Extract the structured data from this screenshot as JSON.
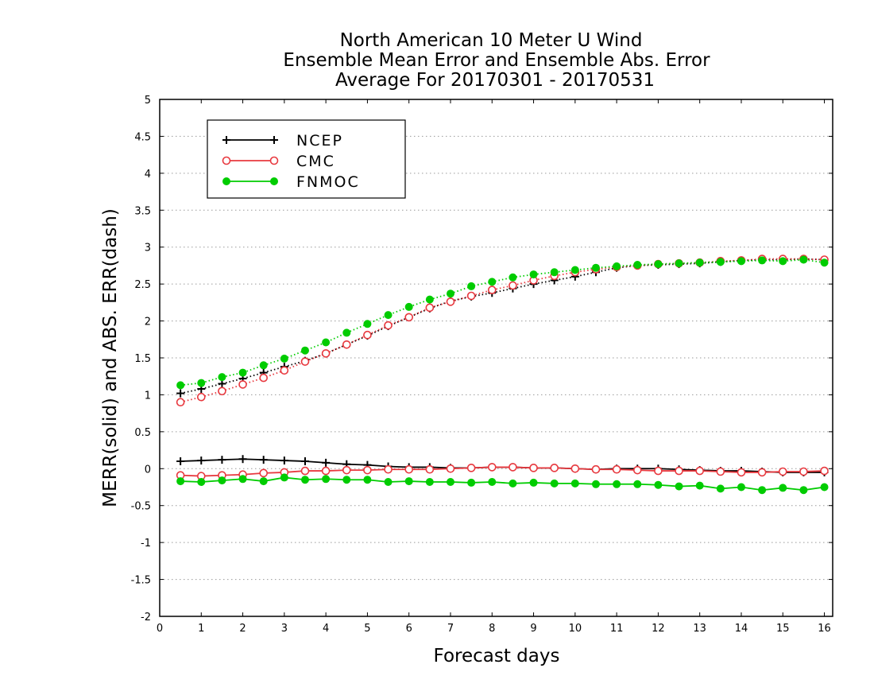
{
  "chart_data": {
    "type": "line",
    "title": [
      "North American 10 Meter U Wind",
      "Ensemble Mean Error and Ensemble Abs. Error",
      "Average For 20170301 - 20170531"
    ],
    "xlabel": "Forecast days",
    "ylabel": "MERR(solid) and ABS. ERR(dash)",
    "xlim": [
      0,
      16.2
    ],
    "ylim": [
      -2,
      5
    ],
    "x_ticks": [
      "0",
      "1",
      "2",
      "3",
      "4",
      "5",
      "6",
      "7",
      "8",
      "9",
      "10",
      "11",
      "12",
      "13",
      "14",
      "15",
      "16"
    ],
    "y_ticks": [
      "-2",
      "-1.5",
      "-1",
      "-0.5",
      "0",
      "0.5",
      "1",
      "1.5",
      "2",
      "2.5",
      "3",
      "3.5",
      "4",
      "4.5",
      "5"
    ],
    "grid": "dotted horizontal",
    "legend_position": "top-left",
    "x": [
      0.5,
      1,
      1.5,
      2,
      2.5,
      3,
      3.5,
      4,
      4.5,
      5,
      5.5,
      6,
      6.5,
      7,
      7.5,
      8,
      8.5,
      9,
      9.5,
      10,
      10.5,
      11,
      11.5,
      12,
      12.5,
      13,
      13.5,
      14,
      14.5,
      15,
      15.5,
      16
    ],
    "series": [
      {
        "name": "NCEP",
        "color": "#000000",
        "marker": "plus",
        "merr": [
          0.1,
          0.11,
          0.12,
          0.13,
          0.12,
          0.11,
          0.1,
          0.08,
          0.06,
          0.05,
          0.03,
          0.02,
          0.02,
          0.01,
          0.01,
          0.02,
          0.02,
          0.01,
          0.01,
          0.0,
          -0.01,
          0.0,
          0.0,
          0.0,
          -0.01,
          -0.02,
          -0.03,
          -0.03,
          -0.04,
          -0.05,
          -0.05,
          -0.05
        ],
        "abserr": [
          1.02,
          1.08,
          1.15,
          1.22,
          1.3,
          1.38,
          1.46,
          1.56,
          1.68,
          1.8,
          1.93,
          2.05,
          2.17,
          2.27,
          2.33,
          2.38,
          2.44,
          2.5,
          2.55,
          2.6,
          2.66,
          2.72,
          2.75,
          2.76,
          2.77,
          2.78,
          2.8,
          2.82,
          2.83,
          2.83,
          2.84,
          2.83
        ]
      },
      {
        "name": "CMC",
        "color": "#e8393f",
        "marker": "open-circle",
        "merr": [
          -0.09,
          -0.1,
          -0.09,
          -0.08,
          -0.06,
          -0.05,
          -0.03,
          -0.03,
          -0.02,
          -0.02,
          -0.01,
          -0.01,
          -0.01,
          0.0,
          0.01,
          0.02,
          0.02,
          0.01,
          0.01,
          0.0,
          -0.01,
          -0.01,
          -0.02,
          -0.03,
          -0.03,
          -0.03,
          -0.04,
          -0.05,
          -0.05,
          -0.04,
          -0.04,
          -0.03
        ],
        "abserr": [
          0.9,
          0.97,
          1.05,
          1.14,
          1.23,
          1.33,
          1.45,
          1.56,
          1.68,
          1.81,
          1.94,
          2.05,
          2.18,
          2.26,
          2.34,
          2.42,
          2.48,
          2.55,
          2.61,
          2.66,
          2.7,
          2.73,
          2.75,
          2.77,
          2.78,
          2.79,
          2.81,
          2.82,
          2.84,
          2.84,
          2.84,
          2.83
        ]
      },
      {
        "name": "FNMOC",
        "color": "#00cc00",
        "marker": "filled-circle",
        "merr": [
          -0.17,
          -0.18,
          -0.16,
          -0.14,
          -0.17,
          -0.12,
          -0.15,
          -0.14,
          -0.15,
          -0.15,
          -0.18,
          -0.17,
          -0.18,
          -0.18,
          -0.19,
          -0.18,
          -0.2,
          -0.19,
          -0.2,
          -0.2,
          -0.21,
          -0.21,
          -0.21,
          -0.22,
          -0.24,
          -0.23,
          -0.27,
          -0.25,
          -0.29,
          -0.26,
          -0.29,
          -0.25
        ],
        "abserr": [
          1.13,
          1.16,
          1.24,
          1.3,
          1.4,
          1.49,
          1.6,
          1.71,
          1.84,
          1.96,
          2.08,
          2.19,
          2.29,
          2.37,
          2.47,
          2.53,
          2.59,
          2.63,
          2.66,
          2.69,
          2.72,
          2.74,
          2.76,
          2.77,
          2.78,
          2.79,
          2.8,
          2.81,
          2.82,
          2.81,
          2.83,
          2.79
        ]
      }
    ]
  }
}
